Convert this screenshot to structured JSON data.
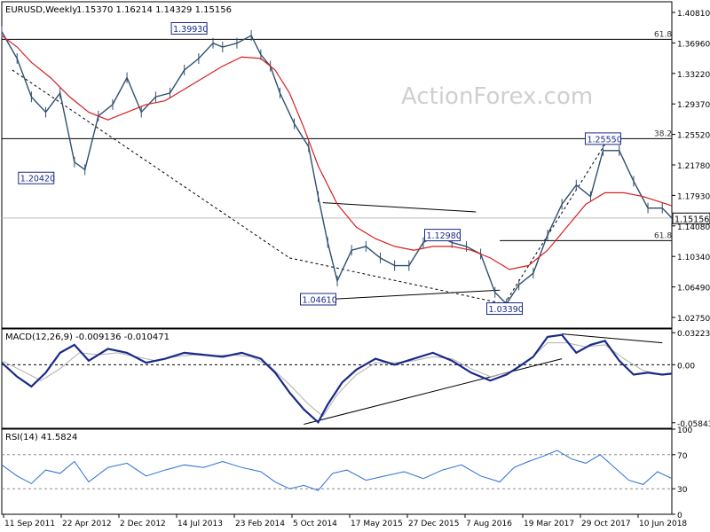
{
  "chart_data": [
    {
      "type": "line",
      "panel": "price",
      "header": {
        "symbol": "EURUSD,Weekly",
        "values": "1.15370 1.16214 1.14329 1.15156"
      },
      "watermark": "ActionForex.com",
      "ylim": [
        1.0085,
        1.434
      ],
      "y_ticks": [
        "1.40810",
        "1.36960",
        "1.33220",
        "1.29370",
        "1.25520",
        "1.21780",
        "1.17930",
        "1.14080",
        "1.10340",
        "1.06490",
        "1.02750"
      ],
      "last_price": "1.15156",
      "x_ticks": [
        "11 Sep 2011",
        "22 Apr 2012",
        "2 Dec 2012",
        "14 Jul 2013",
        "23 Feb 2014",
        "5 Oct 2014",
        "17 May 2015",
        "27 Dec 2015",
        "7 Aug 2016",
        "19 Mar 2017",
        "29 Oct 2017",
        "10 Jun 2018"
      ],
      "fib_labels": [
        {
          "text": "61.8",
          "y": 1.385
        },
        {
          "text": "38.2",
          "y": 1.2555
        },
        {
          "text": "61.8",
          "y": 1.1225
        }
      ],
      "horizontal_levels": [
        1.385,
        1.2555,
        1.152,
        1.1225
      ],
      "price_labels": [
        {
          "text": "1.39930",
          "x": 2013.65,
          "y": 1.3993
        },
        {
          "text": "1.20420",
          "x": 2012.05,
          "y": 1.2042
        },
        {
          "text": "1.04610",
          "x": 2015.0,
          "y": 1.0461
        },
        {
          "text": "1.12980",
          "x": 2016.3,
          "y": 1.1298
        },
        {
          "text": "1.03390",
          "x": 2016.95,
          "y": 1.0339
        },
        {
          "text": "1.25550",
          "x": 2017.98,
          "y": 1.2555
        }
      ],
      "series": [
        {
          "name": "price",
          "color": "#2f4f6f",
          "x": [
            2011.69,
            2011.85,
            2012.0,
            2012.15,
            2012.3,
            2012.45,
            2012.56,
            2012.7,
            2012.85,
            2013.0,
            2013.15,
            2013.3,
            2013.45,
            2013.6,
            2013.75,
            2013.9,
            2014.0,
            2014.15,
            2014.3,
            2014.4,
            2014.5,
            2014.6,
            2014.75,
            2014.9,
            2015.0,
            2015.1,
            2015.2,
            2015.35,
            2015.5,
            2015.65,
            2015.8,
            2015.95,
            2016.1,
            2016.25,
            2016.4,
            2016.55,
            2016.7,
            2016.85,
            2016.97,
            2017.1,
            2017.25,
            2017.4,
            2017.55,
            2017.7,
            2017.85,
            2017.98,
            2018.15,
            2018.3,
            2018.45,
            2018.6,
            2018.7
          ],
          "y": [
            1.395,
            1.36,
            1.31,
            1.29,
            1.315,
            1.225,
            1.215,
            1.285,
            1.3,
            1.335,
            1.29,
            1.31,
            1.315,
            1.345,
            1.36,
            1.38,
            1.375,
            1.38,
            1.39,
            1.365,
            1.35,
            1.315,
            1.275,
            1.245,
            1.18,
            1.12,
            1.07,
            1.11,
            1.115,
            1.1,
            1.09,
            1.09,
            1.12,
            1.13,
            1.12,
            1.115,
            1.105,
            1.055,
            1.04,
            1.065,
            1.08,
            1.13,
            1.17,
            1.195,
            1.18,
            1.24,
            1.24,
            1.2,
            1.165,
            1.165,
            1.152
          ]
        },
        {
          "name": "moving-average",
          "color": "#d62020",
          "x": [
            2011.69,
            2011.85,
            2012.0,
            2012.2,
            2012.4,
            2012.6,
            2012.8,
            2013.0,
            2013.2,
            2013.4,
            2013.6,
            2013.8,
            2014.0,
            2014.2,
            2014.4,
            2014.55,
            2014.7,
            2014.85,
            2015.0,
            2015.2,
            2015.4,
            2015.6,
            2015.8,
            2016.0,
            2016.2,
            2016.4,
            2016.6,
            2016.8,
            2017.0,
            2017.2,
            2017.4,
            2017.6,
            2017.8,
            2018.0,
            2018.2,
            2018.4,
            2018.6,
            2018.7
          ],
          "y": [
            1.39,
            1.375,
            1.355,
            1.335,
            1.31,
            1.29,
            1.28,
            1.29,
            1.3,
            1.305,
            1.32,
            1.335,
            1.35,
            1.362,
            1.36,
            1.345,
            1.315,
            1.27,
            1.22,
            1.17,
            1.14,
            1.125,
            1.115,
            1.11,
            1.115,
            1.115,
            1.11,
            1.1,
            1.085,
            1.09,
            1.11,
            1.14,
            1.17,
            1.185,
            1.185,
            1.18,
            1.172,
            1.168
          ]
        }
      ],
      "trendlines": [
        {
          "x": [
            2011.8,
            2014.7
          ],
          "y": [
            1.345,
            1.1
          ],
          "dashed": true
        },
        {
          "x": [
            2014.7,
            2016.95
          ],
          "y": [
            1.1,
            1.04
          ],
          "dashed": true
        },
        {
          "x": [
            2016.95,
            2018.05
          ],
          "y": [
            1.04,
            1.258
          ],
          "dashed": true
        },
        {
          "x": [
            2015.05,
            2016.65
          ],
          "y": [
            1.172,
            1.16
          ],
          "dashed": false
        },
        {
          "x": [
            2014.95,
            2016.9
          ],
          "y": [
            1.045,
            1.058
          ],
          "dashed": false
        }
      ]
    },
    {
      "type": "line",
      "panel": "macd",
      "header": "MACD(12,26,9) -0.009136 -0.010471",
      "ylim": [
        -0.064,
        0.036
      ],
      "y_ticks": [
        "0.032235",
        "0.00",
        "-0.058434"
      ],
      "zero_label": "0.00",
      "series": [
        {
          "name": "macd",
          "color": "#1a2a8a",
          "x": [
            2011.69,
            2011.85,
            2012.0,
            2012.15,
            2012.3,
            2012.45,
            2012.6,
            2012.8,
            2013.0,
            2013.2,
            2013.4,
            2013.6,
            2013.8,
            2014.0,
            2014.2,
            2014.4,
            2014.55,
            2014.7,
            2014.85,
            2015.0,
            2015.1,
            2015.25,
            2015.4,
            2015.6,
            2015.8,
            2016.0,
            2016.2,
            2016.4,
            2016.6,
            2016.8,
            2016.97,
            2017.1,
            2017.25,
            2017.4,
            2017.55,
            2017.7,
            2017.85,
            2018.0,
            2018.15,
            2018.3,
            2018.45,
            2018.6,
            2018.7
          ],
          "y": [
            0.002,
            -0.012,
            -0.022,
            -0.008,
            0.012,
            0.02,
            0.004,
            0.016,
            0.012,
            0.002,
            0.006,
            0.012,
            0.01,
            0.008,
            0.012,
            0.006,
            -0.008,
            -0.028,
            -0.045,
            -0.058,
            -0.04,
            -0.018,
            -0.005,
            0.006,
            0.0,
            0.006,
            0.012,
            0.004,
            -0.008,
            -0.016,
            -0.01,
            -0.002,
            0.008,
            0.028,
            0.03,
            0.012,
            0.02,
            0.024,
            0.004,
            -0.01,
            -0.008,
            -0.01,
            -0.009
          ]
        },
        {
          "name": "signal",
          "color": "#b0b0b0",
          "x": [
            2011.69,
            2011.9,
            2012.1,
            2012.3,
            2012.5,
            2012.7,
            2012.9,
            2013.1,
            2013.3,
            2013.5,
            2013.7,
            2013.9,
            2014.1,
            2014.3,
            2014.5,
            2014.7,
            2014.9,
            2015.05,
            2015.2,
            2015.4,
            2015.6,
            2015.8,
            2016.0,
            2016.2,
            2016.4,
            2016.6,
            2016.8,
            2017.0,
            2017.2,
            2017.4,
            2017.6,
            2017.8,
            2018.0,
            2018.2,
            2018.4,
            2018.6,
            2018.7
          ],
          "y": [
            0.004,
            -0.006,
            -0.016,
            -0.004,
            0.012,
            0.01,
            0.012,
            0.008,
            0.004,
            0.008,
            0.01,
            0.009,
            0.01,
            0.008,
            -0.002,
            -0.02,
            -0.04,
            -0.052,
            -0.03,
            -0.01,
            0.002,
            0.002,
            0.004,
            0.008,
            0.006,
            -0.004,
            -0.012,
            -0.008,
            0.004,
            0.022,
            0.022,
            0.018,
            0.02,
            0.006,
            -0.006,
            -0.01,
            -0.01
          ]
        }
      ],
      "trendlines": [
        {
          "x": [
            2014.85,
            2017.55
          ],
          "y": [
            -0.06,
            0.006
          ],
          "dashed": false
        },
        {
          "x": [
            2017.55,
            2018.6
          ],
          "y": [
            0.031,
            0.022
          ],
          "dashed": false
        }
      ]
    },
    {
      "type": "line",
      "panel": "rsi",
      "header": "RSI(14) 41.5824",
      "ylim": [
        0,
        100
      ],
      "y_ticks": [
        "100",
        "70",
        "30",
        "0"
      ],
      "levels": [
        70,
        30
      ],
      "series": [
        {
          "name": "rsi",
          "color": "#2a6fd6",
          "x": [
            2011.69,
            2011.85,
            2012.0,
            2012.15,
            2012.3,
            2012.45,
            2012.6,
            2012.8,
            2013.0,
            2013.2,
            2013.4,
            2013.6,
            2013.8,
            2014.0,
            2014.2,
            2014.4,
            2014.55,
            2014.7,
            2014.85,
            2015.0,
            2015.15,
            2015.3,
            2015.5,
            2015.7,
            2015.9,
            2016.1,
            2016.3,
            2016.5,
            2016.7,
            2016.9,
            2017.05,
            2017.2,
            2017.35,
            2017.5,
            2017.65,
            2017.8,
            2017.95,
            2018.1,
            2018.25,
            2018.4,
            2018.55,
            2018.7
          ],
          "y": [
            58,
            45,
            36,
            52,
            48,
            62,
            38,
            55,
            60,
            45,
            52,
            58,
            55,
            62,
            55,
            50,
            38,
            30,
            34,
            28,
            48,
            52,
            40,
            45,
            50,
            42,
            52,
            58,
            45,
            38,
            55,
            62,
            68,
            75,
            65,
            60,
            70,
            55,
            40,
            35,
            50,
            42
          ]
        }
      ]
    }
  ]
}
